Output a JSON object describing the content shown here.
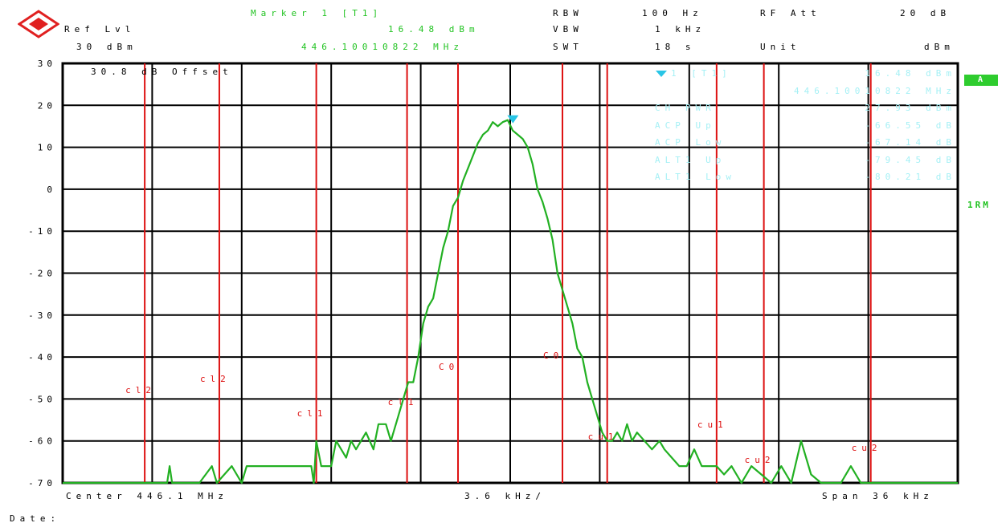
{
  "header": {
    "ref_lvl_label": "Ref Lvl",
    "ref_lvl_value": "30 dBm",
    "marker_title": "Marker 1 [T1]",
    "marker_level": "16.48 dBm",
    "marker_freq": "446.10010822 MHz",
    "rbw_label": "RBW",
    "rbw_value": "100 Hz",
    "vbw_label": "VBW",
    "vbw_value": "1 kHz",
    "swt_label": "SWT",
    "swt_value": "18 s",
    "rf_att_label": "RF Att",
    "rf_att_value": "20 dB",
    "unit_label": "Unit",
    "unit_value": "dBm"
  },
  "offset_text": "30.8 dB Offset",
  "side": {
    "badge": "A",
    "trace_label": "1RM"
  },
  "marker_table": {
    "rows": [
      {
        "label": "1 [T1]",
        "value": "16.48 dBm"
      },
      {
        "label": "",
        "value": "446.10010822 MHz"
      },
      {
        "label": "CH PWR",
        "value": "27.93 dBm"
      },
      {
        "label": "ACP Up",
        "value": "-66.55 dB"
      },
      {
        "label": "ACP Low",
        "value": "-67.14 dB"
      },
      {
        "label": "ALT1 Up",
        "value": "-79.45 dB"
      },
      {
        "label": "ALT1 Low",
        "value": "-80.21 dB"
      }
    ]
  },
  "footer": {
    "center": "Center 446.1 MHz",
    "div": "3.6 kHz/",
    "span": "Span 36 kHz",
    "date": "Date:"
  },
  "colors": {
    "trace": "#22b022",
    "limit_lines": "#dd1111",
    "grid": "#000000",
    "marker": "#29c5e6",
    "logo": "#e02020"
  },
  "chart_data": {
    "type": "line",
    "y_ticks": [
      "30",
      "20",
      "10",
      "0",
      "-10",
      "-20",
      "-30",
      "-40",
      "-50",
      "-60",
      "-70"
    ],
    "ylim": [
      -70,
      30
    ],
    "xlim_khz": [
      -18,
      18
    ],
    "marker": {
      "x_khz": 0.108,
      "y": 16.48
    },
    "channel_lines": [
      {
        "label": "cl2",
        "x_khz": -14.7
      },
      {
        "label": "cl2",
        "x_khz": -11.7
      },
      {
        "label": "cl1",
        "x_khz": -7.8
      },
      {
        "label": "cl1",
        "x_khz": -4.15
      },
      {
        "label": "C0",
        "x_khz": -2.1
      },
      {
        "label": "C0",
        "x_khz": 2.1
      },
      {
        "label": "cu1",
        "x_khz": 3.9
      },
      {
        "label": "cu1",
        "x_khz": 8.3
      },
      {
        "label": "cu2",
        "x_khz": 10.2
      },
      {
        "label": "cu2",
        "x_khz": 14.5
      }
    ],
    "series": [
      {
        "x_khz": [
          -18,
          -13.8,
          -13.7,
          -13.6,
          -12.5,
          -12.0,
          -11.8,
          -11.2,
          -10.8,
          -10.6,
          -10.4,
          -9.0,
          -8.0,
          -7.9,
          -7.8,
          -7.6,
          -7.2,
          -7.0,
          -6.6,
          -6.4,
          -6.2,
          -6.0,
          -5.8,
          -5.5,
          -5.3,
          -5.0,
          -4.8,
          -4.5,
          -4.3,
          -4.1,
          -3.9,
          -3.7,
          -3.5,
          -3.3,
          -3.1,
          -2.9,
          -2.7,
          -2.5,
          -2.3,
          -2.1,
          -1.9,
          -1.7,
          -1.5,
          -1.3,
          -1.1,
          -0.9,
          -0.7,
          -0.5,
          -0.3,
          -0.1,
          0.1,
          0.3,
          0.5,
          0.7,
          0.9,
          1.1,
          1.3,
          1.5,
          1.7,
          1.9,
          2.1,
          2.3,
          2.5,
          2.7,
          2.9,
          3.1,
          3.3,
          3.5,
          3.7,
          3.9,
          4.1,
          4.3,
          4.5,
          4.7,
          4.9,
          5.1,
          5.4,
          5.7,
          6.0,
          6.2,
          6.5,
          6.8,
          7.1,
          7.4,
          7.7,
          8.0,
          8.3,
          8.6,
          8.9,
          9.3,
          9.7,
          10.1,
          10.5,
          10.9,
          11.3,
          11.7,
          12.1,
          12.5,
          12.9,
          13.3,
          13.7,
          14.1,
          14.5,
          14.9,
          18
        ],
        "values": [
          -70,
          -70,
          -66,
          -70,
          -70,
          -66,
          -70,
          -66,
          -70,
          -66,
          -66,
          -66,
          -66,
          -70,
          -60,
          -66,
          -66,
          -60,
          -64,
          -60,
          -62,
          -60,
          -58,
          -62,
          -56,
          -56,
          -60,
          -54,
          -50,
          -46,
          -46,
          -40,
          -32,
          -28,
          -26,
          -20,
          -14,
          -10,
          -4,
          -2,
          2,
          5,
          8,
          11,
          13,
          14,
          16,
          15,
          16,
          16.48,
          14,
          13,
          12,
          10,
          6,
          0,
          -3,
          -7,
          -12,
          -20,
          -24,
          -28,
          -32,
          -38,
          -40,
          -46,
          -50,
          -54,
          -58,
          -60,
          -60,
          -58,
          -60,
          -56,
          -60,
          -58,
          -60,
          -62,
          -60,
          -62,
          -64,
          -66,
          -66,
          -62,
          -66,
          -66,
          -66,
          -68,
          -66,
          -70,
          -66,
          -68,
          -70,
          -66,
          -70,
          -60,
          -68,
          -70,
          -70,
          -70,
          -66,
          -70,
          -70,
          -70,
          -70
        ]
      }
    ]
  }
}
